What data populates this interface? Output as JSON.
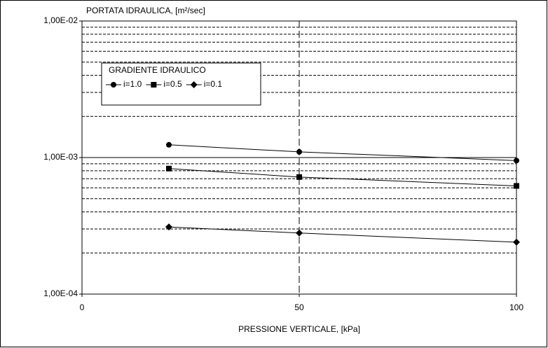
{
  "chart_data": {
    "type": "line",
    "title": "PORTATA IDRAULICA, [m²/sec]",
    "x_label": "PRESSIONE VERTICALE, [kPa]",
    "x": [
      20,
      50,
      100
    ],
    "xlim": [
      0,
      100
    ],
    "xticks": [
      0,
      50,
      100
    ],
    "ylim": [
      0.0001,
      0.01
    ],
    "yticks": [
      {
        "value": 0.0001,
        "label": "1,00E-04"
      },
      {
        "value": 0.001,
        "label": "1,00E-03"
      },
      {
        "value": 0.01,
        "label": "1,00E-02"
      }
    ],
    "y_minor_ticks": [
      0.0002,
      0.0003,
      0.0004,
      0.0005,
      0.0006,
      0.0007,
      0.0008,
      0.0009,
      0.002,
      0.003,
      0.004,
      0.005,
      0.006,
      0.007,
      0.008,
      0.009
    ],
    "log_y": true,
    "grid": true,
    "legend_title": "GRADIENTE IDRAULICO",
    "legend_position": "upper left",
    "series": [
      {
        "name": "i=1.0",
        "color": "#000000",
        "marker": "circle",
        "values": [
          0.00124,
          0.0011,
          0.00095
        ]
      },
      {
        "name": "i=0.5",
        "color": "#000000",
        "marker": "square",
        "values": [
          0.00083,
          0.00072,
          0.00062
        ]
      },
      {
        "name": "i=0.1",
        "color": "#000000",
        "marker": "diamond",
        "values": [
          0.00031,
          0.00028,
          0.00024
        ]
      }
    ]
  }
}
